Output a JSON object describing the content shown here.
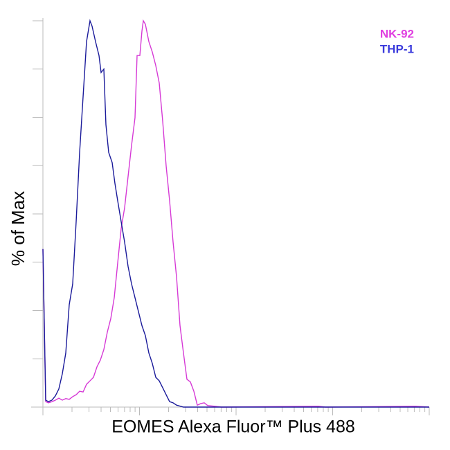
{
  "chart_data": {
    "type": "line",
    "x_label": "EOMES Alexa Fluor™ Plus 488",
    "y_label": "% of Max",
    "xlim": [
      0,
      558
    ],
    "ylim": [
      0,
      100
    ],
    "legend": "top-right",
    "series": [
      {
        "name": "NK-92",
        "color": "#d63ad6",
        "label_color": "#e040e0",
        "x": [
          0,
          4,
          8,
          13,
          18,
          23,
          28,
          33,
          38,
          43,
          48,
          53,
          58,
          63,
          68,
          73,
          78,
          83,
          88,
          93,
          98,
          103,
          108,
          113,
          118,
          123,
          128,
          133,
          136,
          140,
          143,
          145,
          148,
          153,
          158,
          163,
          168,
          173,
          178,
          183,
          188,
          193,
          198,
          203,
          208,
          213,
          218,
          223,
          228,
          233,
          238,
          248,
          258,
          398,
          408,
          538,
          558
        ],
        "values": [
          40.9,
          1.4,
          1.1,
          1.4,
          1.8,
          2.3,
          1.8,
          2.2,
          2.0,
          2.7,
          3.2,
          4.1,
          3.9,
          5.9,
          6.8,
          7.7,
          10.4,
          12.2,
          14.9,
          19.4,
          22.9,
          28.3,
          37.3,
          46.2,
          51.6,
          59.7,
          67.7,
          74.9,
          91.0,
          91.0,
          97.3,
          100,
          99.1,
          94.6,
          91.9,
          88.4,
          83.9,
          74.0,
          62.4,
          53.4,
          42.7,
          33.7,
          21.1,
          14.0,
          7.2,
          6.5,
          4.1,
          0.5,
          0.9,
          1.1,
          0.4,
          0.2,
          0,
          0.2,
          0,
          0.2,
          0
        ]
      },
      {
        "name": "THP-1",
        "color": "#1a1a9a",
        "label_color": "#3b3bdc",
        "x": [
          0,
          4,
          8,
          13,
          18,
          23,
          28,
          33,
          38,
          43,
          48,
          53,
          58,
          63,
          68,
          71,
          76,
          81,
          84,
          88,
          91,
          95,
          100,
          104,
          108,
          113,
          118,
          123,
          128,
          133,
          138,
          143,
          148,
          153,
          158,
          163,
          168,
          173,
          178,
          183,
          188,
          193,
          203,
          218,
          558
        ],
        "values": [
          40.9,
          1.8,
          1.4,
          1.8,
          2.9,
          4.7,
          8.6,
          14.0,
          26.5,
          31.9,
          48.0,
          65.9,
          80.3,
          94.6,
          100,
          98.6,
          94.6,
          91.0,
          86.6,
          87.5,
          73.1,
          65.9,
          63.3,
          57.9,
          53.4,
          48.0,
          42.7,
          36.4,
          31.9,
          28.3,
          24.7,
          21.1,
          18.5,
          14.0,
          11.3,
          7.7,
          6.8,
          5.0,
          3.2,
          1.4,
          1.1,
          0.5,
          0,
          0,
          0
        ]
      }
    ]
  }
}
